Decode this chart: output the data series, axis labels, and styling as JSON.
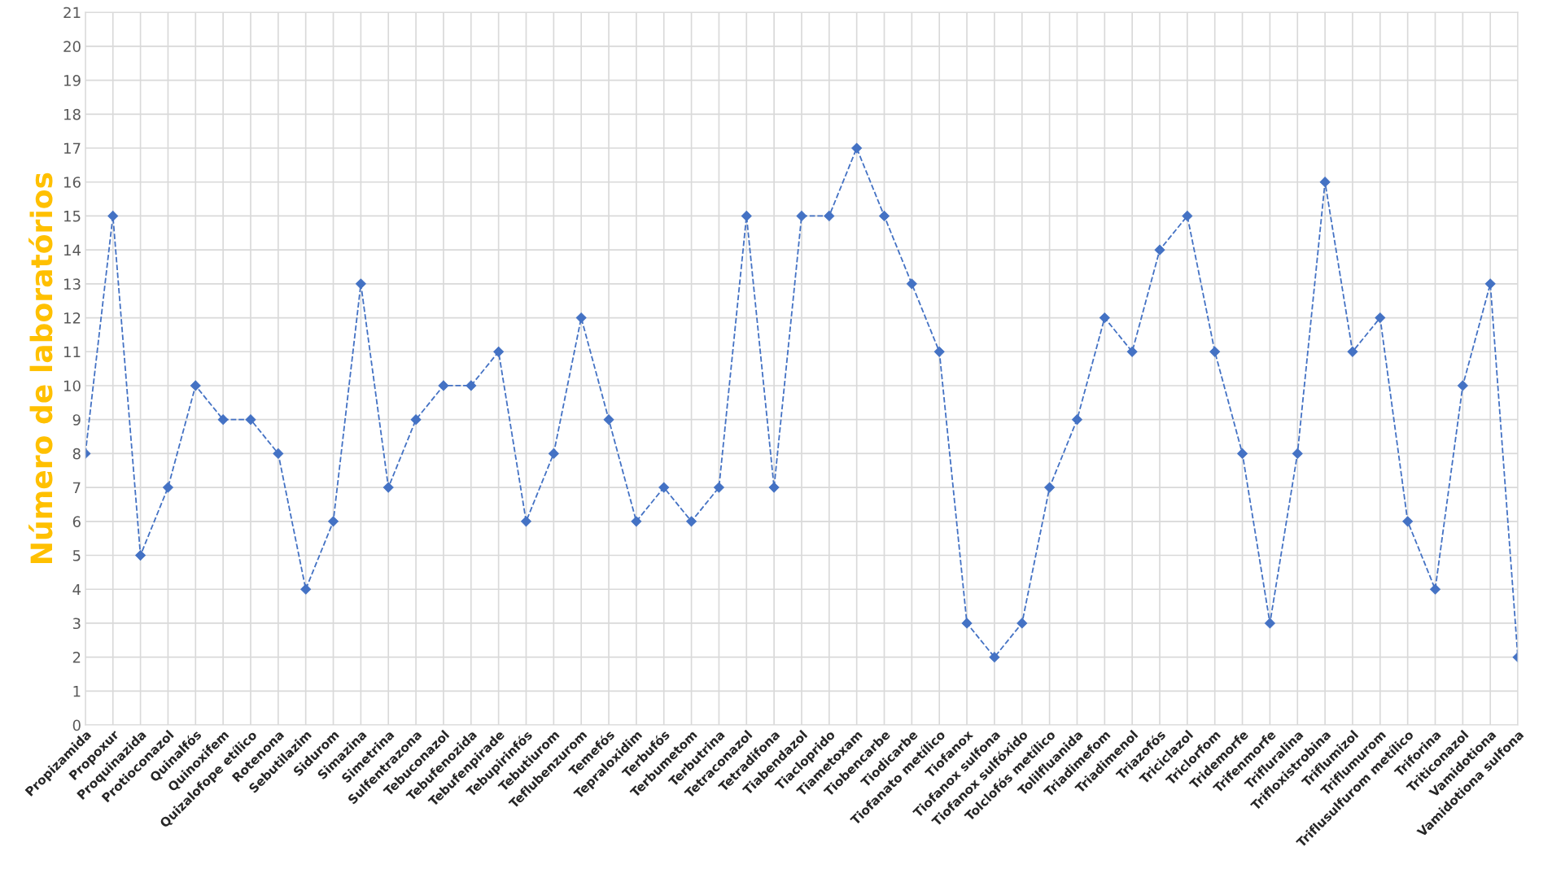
{
  "chart_data": {
    "type": "line",
    "ylabel": "Número de laboratórios",
    "categories": [
      "Propizamida",
      "Propoxur",
      "Proquinazida",
      "Protioconazol",
      "Quinalfós",
      "Quinoxifem",
      "Quizalofope etílico",
      "Rotenona",
      "Sebutilazim",
      "Sidurom",
      "Simazina",
      "Simetrina",
      "Sulfentrazona",
      "Tebuconazol",
      "Tebufenozida",
      "Tebufenpirade",
      "Tebupirinfós",
      "Tebutiurom",
      "Teflubenzurom",
      "Temefós",
      "Tepraloxidim",
      "Terbufós",
      "Terbumetom",
      "Terbutrina",
      "Tetraconazol",
      "Tetradifona",
      "Tiabendazol",
      "Tiacloprido",
      "Tiametoxam",
      "Tiobencarbe",
      "Tiodicarbe",
      "Tiofanato metílico",
      "Tiofanox",
      "Tiofanox sulfona",
      "Tiofanox sulfóxido",
      "Tolclofós metílico",
      "Tolilfluanida",
      "Triadimefom",
      "Triadimenol",
      "Triazofós",
      "Triciclazol",
      "Triclorfom",
      "Tridemorfe",
      "Trifenmorfe",
      "Trifluralina",
      "Trifloxistrobina",
      "Triflumizol",
      "Triflumurom",
      "Triflusulfurom metílico",
      "Triforina",
      "Triticonazol",
      "Vamidotiona",
      "Vamidotiona sulfona"
    ],
    "series": [
      {
        "color": "#4472c4",
        "values": [
          8,
          15,
          5,
          7,
          10,
          9,
          9,
          8,
          4,
          6,
          13,
          7,
          9,
          10,
          10,
          11,
          6,
          8,
          12,
          9,
          6,
          7,
          6,
          7,
          15,
          7,
          15,
          15,
          17,
          15,
          13,
          11,
          3,
          2,
          3,
          7,
          9,
          12,
          11,
          14,
          15,
          11,
          8,
          3,
          8,
          16,
          11,
          12,
          6,
          4,
          10,
          13,
          2
        ]
      }
    ],
    "ylim": [
      0,
      21
    ],
    "yticks": [
      0,
      1,
      2,
      3,
      4,
      5,
      6,
      7,
      8,
      9,
      10,
      11,
      12,
      13,
      14,
      15,
      16,
      17,
      18,
      19,
      20,
      21
    ],
    "grid": true,
    "marker": "diamond",
    "line_style": "dashed"
  }
}
